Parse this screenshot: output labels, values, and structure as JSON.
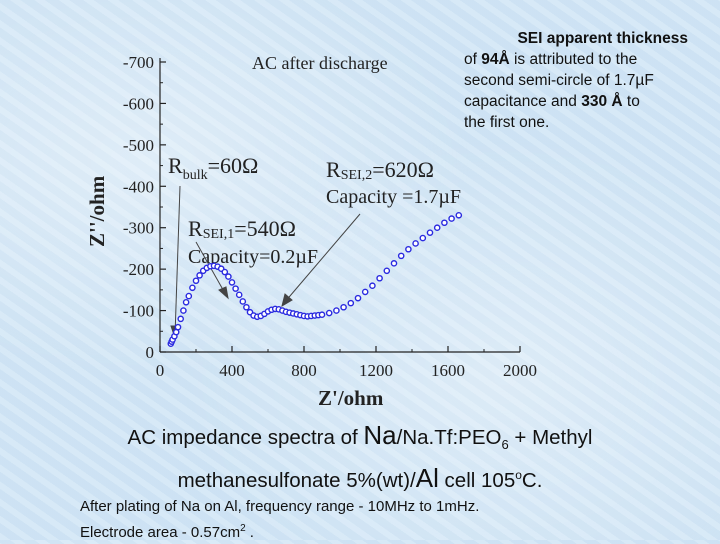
{
  "note": {
    "title": "SEI apparent thickness",
    "l1_pre": "of ",
    "l1_bold": "94Å",
    "l1_post": " is attributed to the",
    "l2": "second semi-circle of  1.7µF",
    "l3": "capacitance and ",
    "l3_bold": "330 Å",
    "l3_post": " to",
    "l4": "the first one."
  },
  "caption": {
    "p1": "AC impedance spectra of ",
    "na": "Na",
    "p2": "/Na.Tf:PEO",
    "sub6": "6",
    "p3": " +  Methyl",
    "p4": "methanesulfonate 5%(wt)/",
    "al": "Al",
    "p5": " cell 105",
    "deg": "o",
    "p6": "C."
  },
  "footnote": {
    "l1": "After plating of Na on Al, frequency range - 10MHz to 1mHz.",
    "l2a": "Electrode area - 0.57cm",
    "l2sup": "2",
    "l2b": " ."
  },
  "chart_data": {
    "type": "scatter",
    "title": "AC after discharge",
    "xlabel": "Z'/ohm",
    "ylabel": "Z''/ohm",
    "xlim": [
      0,
      2000
    ],
    "ylim": [
      0,
      -700
    ],
    "xticks": [
      "0",
      "400",
      "800",
      "1200",
      "1600",
      "2000"
    ],
    "yticks": [
      "-700",
      "-600",
      "-500",
      "-400",
      "-300",
      "-200",
      "-100",
      "0"
    ],
    "series": [
      {
        "marker_color": "#2a2ae0",
        "x": [
          60,
          65,
          70,
          80,
          90,
          100,
          115,
          130,
          145,
          160,
          180,
          200,
          220,
          240,
          260,
          280,
          300,
          320,
          340,
          360,
          380,
          400,
          420,
          440,
          460,
          480,
          500,
          520,
          540,
          560,
          580,
          600,
          620,
          640,
          660,
          680,
          700,
          720,
          740,
          760,
          780,
          800,
          820,
          840,
          860,
          880,
          900,
          940,
          980,
          1020,
          1060,
          1100,
          1140,
          1180,
          1220,
          1260,
          1300,
          1340,
          1380,
          1420,
          1460,
          1500,
          1540,
          1580,
          1620,
          1660
        ],
        "y": [
          -20,
          -25,
          -30,
          -38,
          -48,
          -60,
          -80,
          -100,
          -120,
          -135,
          -155,
          -172,
          -185,
          -196,
          -203,
          -207,
          -208,
          -206,
          -201,
          -193,
          -182,
          -168,
          -153,
          -138,
          -122,
          -108,
          -96,
          -88,
          -85,
          -87,
          -92,
          -98,
          -102,
          -104,
          -103,
          -100,
          -97,
          -95,
          -93,
          -91,
          -89,
          -87,
          -86,
          -87,
          -88,
          -89,
          -90,
          -94,
          -100,
          -108,
          -118,
          -130,
          -145,
          -160,
          -178,
          -196,
          -214,
          -232,
          -248,
          -262,
          -275,
          -288,
          -300,
          -312,
          -322,
          -330
        ]
      }
    ],
    "annotations": {
      "rbulk": "R",
      "rbulk_sub": "bulk",
      "rbulk_val": "=60Ω",
      "rsei2": "R",
      "rsei2_sub": "SEI,2",
      "rsei2_val": "=620Ω",
      "cap2": "Capacity =1.7µF",
      "rsei1": "R",
      "rsei1_sub": "SEI,1",
      "rsei1_val": "=540Ω",
      "cap1": "Capacity=0.2µF"
    }
  }
}
